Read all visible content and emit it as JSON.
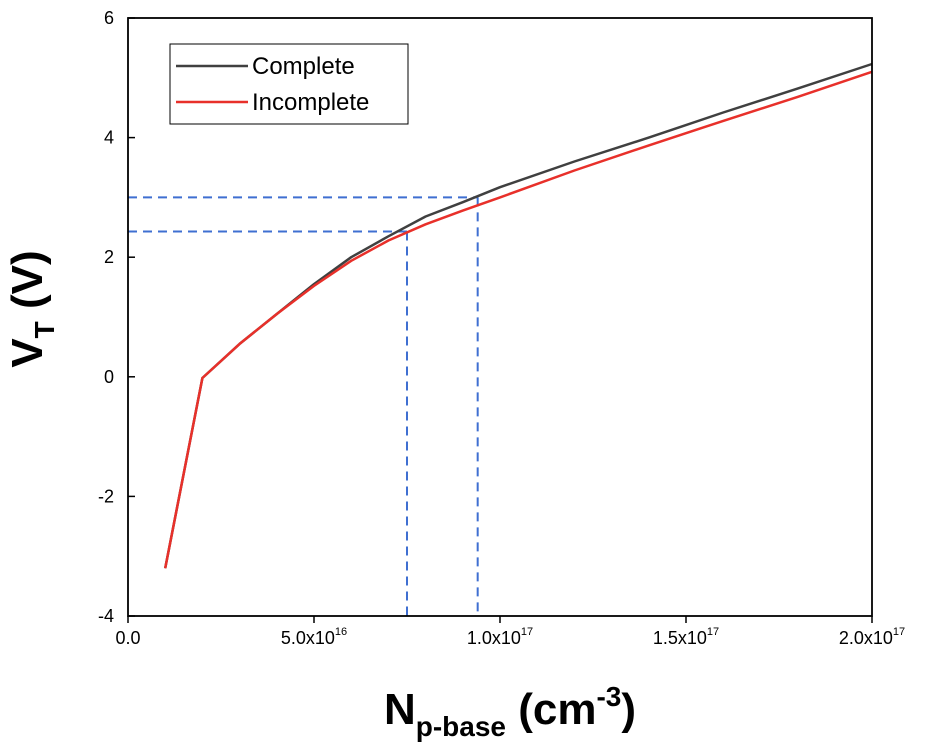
{
  "chart_data": {
    "type": "line",
    "xlabel": {
      "main": "N",
      "sub": "p-base",
      "rest": " (cm",
      "sup": "-3",
      "close": ")"
    },
    "ylabel": {
      "main": "V",
      "sub": "T",
      "rest": " (V)"
    },
    "xlim": [
      0,
      2e+17
    ],
    "ylim": [
      -4,
      6
    ],
    "x_ticks": [
      {
        "value": 0,
        "label": "0.0",
        "exp": ""
      },
      {
        "value": 5e+16,
        "label": "5.0x10",
        "exp": "16"
      },
      {
        "value": 1e+17,
        "label": "1.0x10",
        "exp": "17"
      },
      {
        "value": 1.5e+17,
        "label": "1.5x10",
        "exp": "17"
      },
      {
        "value": 2e+17,
        "label": "2.0x10",
        "exp": "17"
      }
    ],
    "y_ticks": [
      {
        "value": -4,
        "label": "-4"
      },
      {
        "value": -2,
        "label": "-2"
      },
      {
        "value": 0,
        "label": "0"
      },
      {
        "value": 2,
        "label": "2"
      },
      {
        "value": 4,
        "label": "4"
      },
      {
        "value": 6,
        "label": "6"
      }
    ],
    "series": [
      {
        "name": "Complete",
        "color": "#404040",
        "x": [
          1e+16,
          2e+16,
          3e+16,
          4e+16,
          5e+16,
          6e+16,
          7e+16,
          8e+16,
          9e+16,
          1e+17,
          1.2e+17,
          1.4e+17,
          1.6e+17,
          1.8e+17,
          2e+17
        ],
        "y": [
          -3.2,
          -0.02,
          0.55,
          1.05,
          1.55,
          2.0,
          2.35,
          2.68,
          2.92,
          3.17,
          3.6,
          4.0,
          4.42,
          4.82,
          5.23
        ]
      },
      {
        "name": "Incomplete",
        "color": "#e8302a",
        "x": [
          1e+16,
          2e+16,
          3e+16,
          4e+16,
          5e+16,
          6e+16,
          7e+16,
          8e+16,
          9e+16,
          1e+17,
          1.2e+17,
          1.4e+17,
          1.6e+17,
          1.8e+17,
          2e+17
        ],
        "y": [
          -3.2,
          -0.02,
          0.55,
          1.05,
          1.52,
          1.94,
          2.28,
          2.55,
          2.78,
          3.0,
          3.45,
          3.87,
          4.28,
          4.68,
          5.1
        ]
      }
    ],
    "reference_lines": [
      {
        "color": "#3f6fd1",
        "x": 7.5e+16,
        "y": 2.43
      },
      {
        "color": "#3f6fd1",
        "x": 9.4e+16,
        "y": 3.0
      }
    ],
    "legend": {
      "position": "top-left",
      "entries": [
        "Complete",
        "Incomplete"
      ]
    },
    "grid": false
  }
}
